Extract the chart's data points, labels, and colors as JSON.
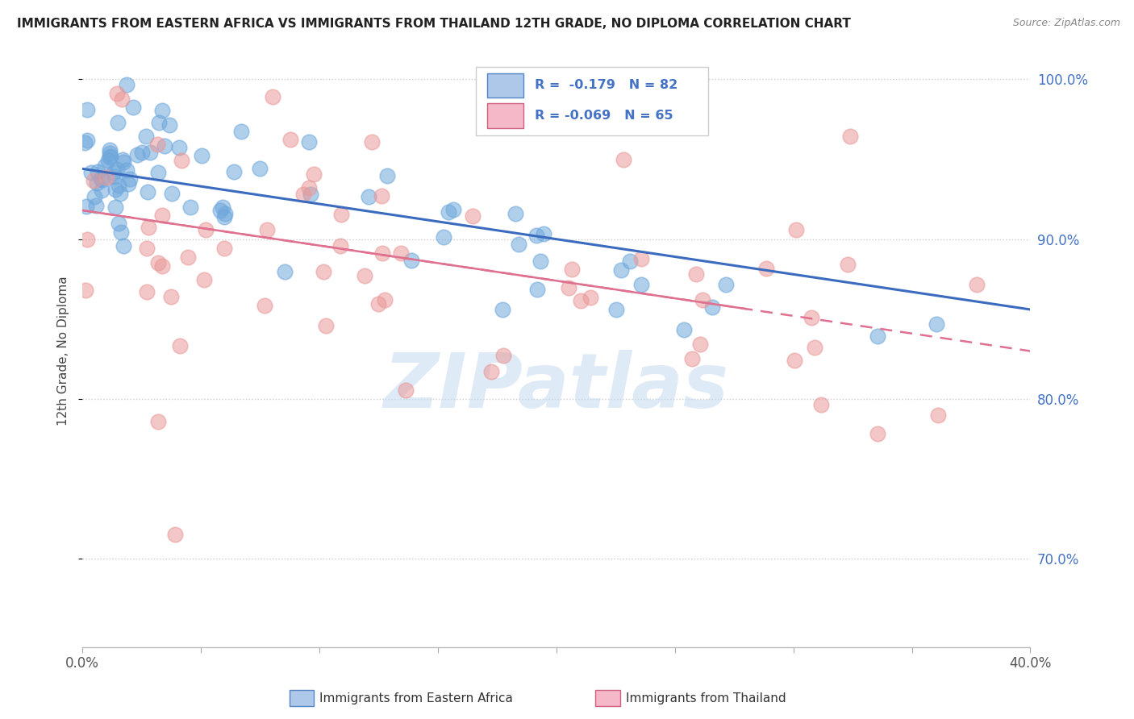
{
  "title": "IMMIGRANTS FROM EASTERN AFRICA VS IMMIGRANTS FROM THAILAND 12TH GRADE, NO DIPLOMA CORRELATION CHART",
  "source": "Source: ZipAtlas.com",
  "ylabel": "12th Grade, No Diploma",
  "legend_label1": "Immigrants from Eastern Africa",
  "legend_label2": "Immigrants from Thailand",
  "R1": -0.179,
  "N1": 82,
  "R2": -0.069,
  "N2": 65,
  "color1": "#6fa8dc",
  "color2": "#ea9999",
  "trend1_color": "#3a6bbf",
  "trend2_color": "#e07090",
  "xlim": [
    0.0,
    0.4
  ],
  "ylim": [
    0.645,
    1.015
  ],
  "ytick_vals": [
    0.7,
    0.8,
    0.9,
    1.0
  ],
  "ytick_labels": [
    "70.0%",
    "80.0%",
    "90.0%",
    "100.0%"
  ],
  "background_color": "#ffffff",
  "grid_color": "#cccccc",
  "watermark_zi": "ZI",
  "watermark_p": "P",
  "watermark_atlas": "atlas",
  "blue_line_y0": 0.944,
  "blue_line_y1": 0.856,
  "pink_line_y0": 0.918,
  "pink_line_y1": 0.83
}
